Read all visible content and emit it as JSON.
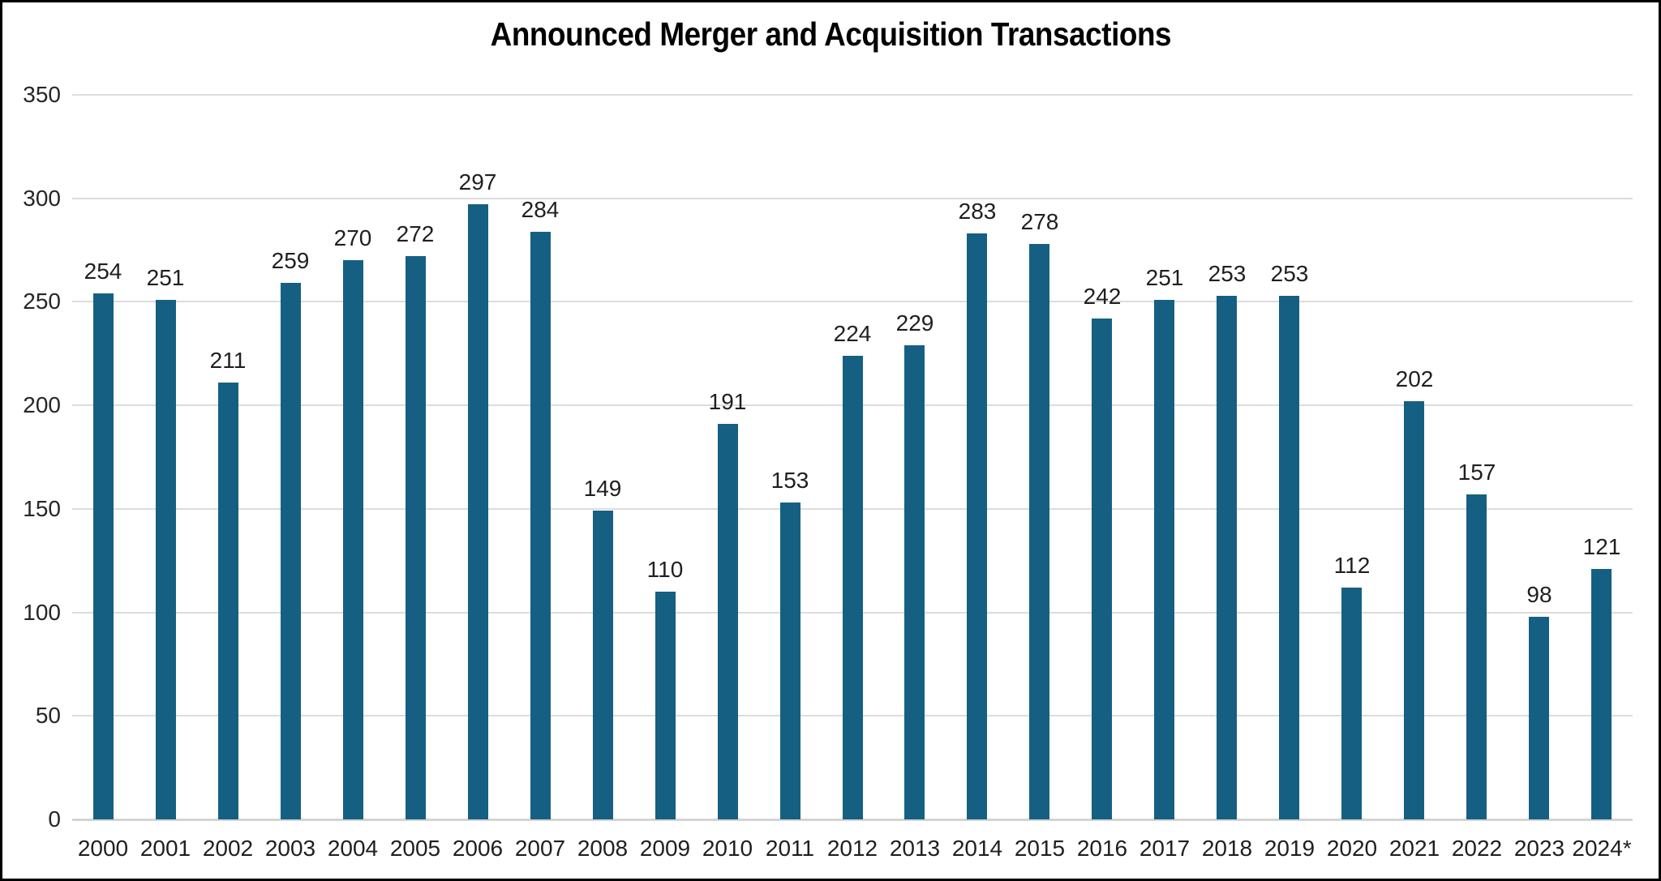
{
  "window": {
    "kind": "chart-image"
  },
  "chart_data": {
    "type": "bar",
    "title": "Announced Merger and Acquisition Transactions",
    "categories": [
      "2000",
      "2001",
      "2002",
      "2003",
      "2004",
      "2005",
      "2006",
      "2007",
      "2008",
      "2009",
      "2010",
      "2011",
      "2012",
      "2013",
      "2014",
      "2015",
      "2016",
      "2017",
      "2018",
      "2019",
      "2020",
      "2021",
      "2022",
      "2023",
      "2024*"
    ],
    "values": [
      254,
      251,
      211,
      259,
      270,
      272,
      297,
      284,
      149,
      110,
      191,
      153,
      224,
      229,
      283,
      278,
      242,
      251,
      253,
      253,
      112,
      202,
      157,
      98,
      121
    ],
    "xlabel": "",
    "ylabel": "",
    "ylim": [
      0,
      350
    ],
    "yticks": [
      0,
      50,
      100,
      150,
      200,
      250,
      300,
      350
    ],
    "grid": "horizontal",
    "legend_position": "none",
    "data_labels": "above-bars",
    "colors": {
      "bar": "#156082",
      "gridline": "#dcdcdc",
      "axis_line": "#d4d4d4",
      "title_text": "#000000",
      "tick_text": "#1f1f1f",
      "border": "#000000",
      "background": "#ffffff"
    }
  }
}
